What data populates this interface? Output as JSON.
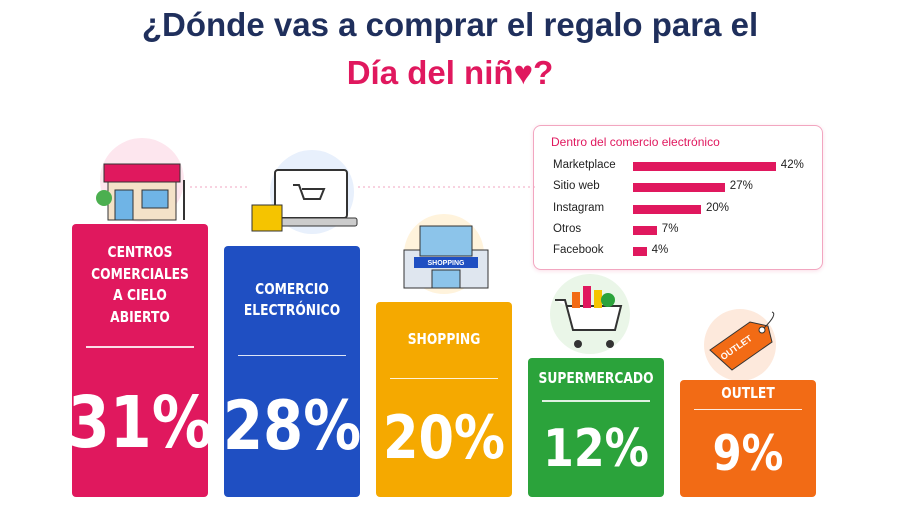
{
  "chart_data": [
    {
      "type": "bar",
      "title": [
        "¿Dónde vas a comprar el regalo para el",
        "Día del niñ♥?"
      ],
      "categories": [
        "CENTROS COMERCIALES A CIELO ABIERTO",
        "COMERCIO ELECTRÓNICO",
        "SHOPPING",
        "SUPERMERCADO",
        "OUTLET"
      ],
      "values": [
        31,
        28,
        20,
        12,
        9
      ],
      "value_labels": [
        "31%",
        "28%",
        "20%",
        "12%",
        "9%"
      ],
      "colors": [
        "#e0185e",
        "#1f4fc2",
        "#f5a900",
        "#2ba33b",
        "#f26b15"
      ],
      "icon_texts": {
        "shopping_sign": "SHOPPING",
        "outlet_tag": "OUTLET"
      }
    },
    {
      "type": "bar",
      "orientation": "horizontal",
      "title": "Dentro del comercio electrónico",
      "categories": [
        "Marketplace",
        "Sitio web",
        "Instagram",
        "Otros",
        "Facebook"
      ],
      "values": [
        42,
        27,
        20,
        7,
        4
      ],
      "value_labels": [
        "42%",
        "27%",
        "20%",
        "7%",
        "4%"
      ],
      "color": "#e0185e"
    }
  ]
}
